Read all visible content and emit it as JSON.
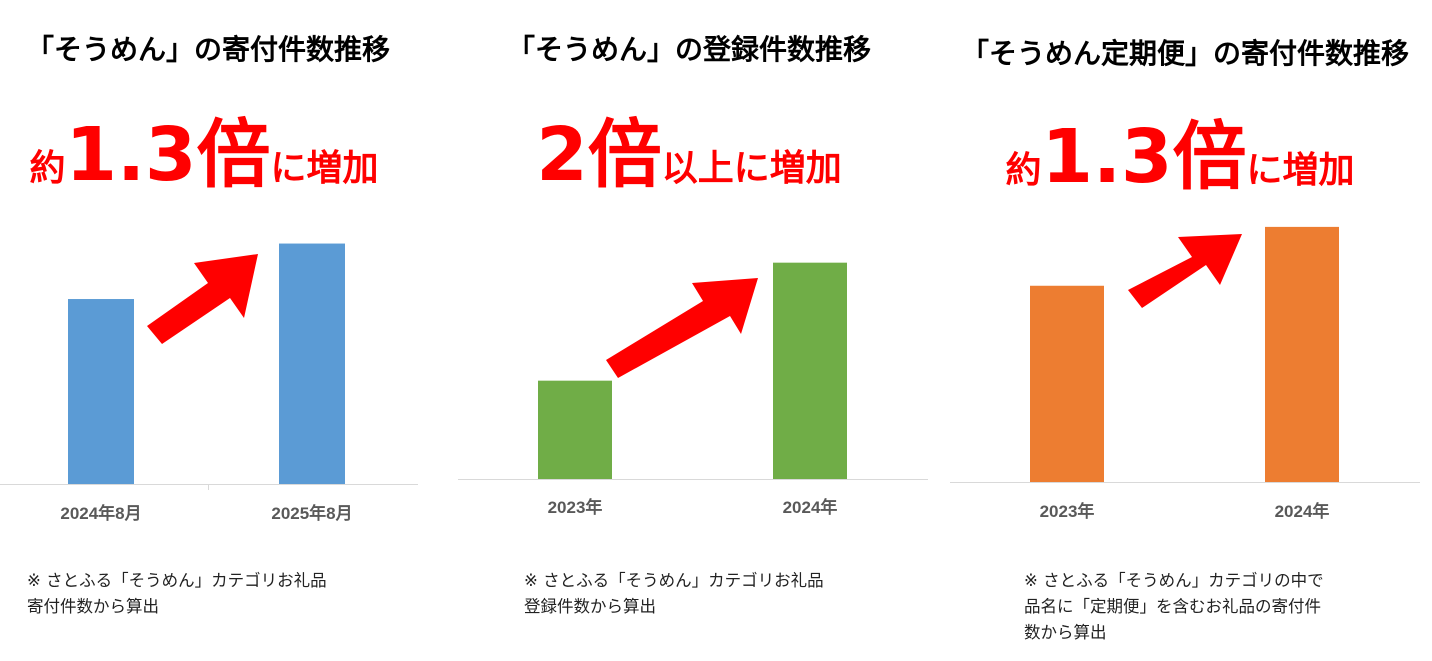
{
  "chart_data": [
    {
      "type": "bar",
      "title": "「そうめん」の寄付件数推移",
      "headline": {
        "prefix": "約",
        "main": "1.3倍",
        "suffix": "に増加"
      },
      "categories": [
        "2024年8月",
        "2025年8月"
      ],
      "values": [
        1.0,
        1.3
      ],
      "ylim": [
        0,
        1.33
      ],
      "color": "#5b9bd5",
      "note": "※ さとふる「そうめん」カテゴリお礼品\n寄付件数から算出",
      "grid": false,
      "axis_label_visible": false
    },
    {
      "type": "bar",
      "title": "「そうめん」の登録件数推移",
      "headline": {
        "prefix": "",
        "main": "2倍",
        "suffix": "以上に増加"
      },
      "categories": [
        "2023年",
        "2024年"
      ],
      "values": [
        1.0,
        2.2
      ],
      "ylim": [
        0,
        2.4
      ],
      "color": "#70ad47",
      "note": "※ さとふる「そうめん」カテゴリお礼品\n登録件数から算出",
      "grid": false,
      "axis_label_visible": false
    },
    {
      "type": "bar",
      "title": "「そうめん定期便」の寄付件数推移",
      "headline": {
        "prefix": "約",
        "main": "1.3倍",
        "suffix": "に増加"
      },
      "categories": [
        "2023年",
        "2024年"
      ],
      "values": [
        1.0,
        1.3
      ],
      "ylim": [
        0,
        1.33
      ],
      "color": "#ed7d31",
      "note": "※ さとふる「そうめん」カテゴリの中で\n品名に「定期便」を含むお礼品の寄付件\n数から算出",
      "grid": false,
      "axis_label_visible": false
    }
  ]
}
